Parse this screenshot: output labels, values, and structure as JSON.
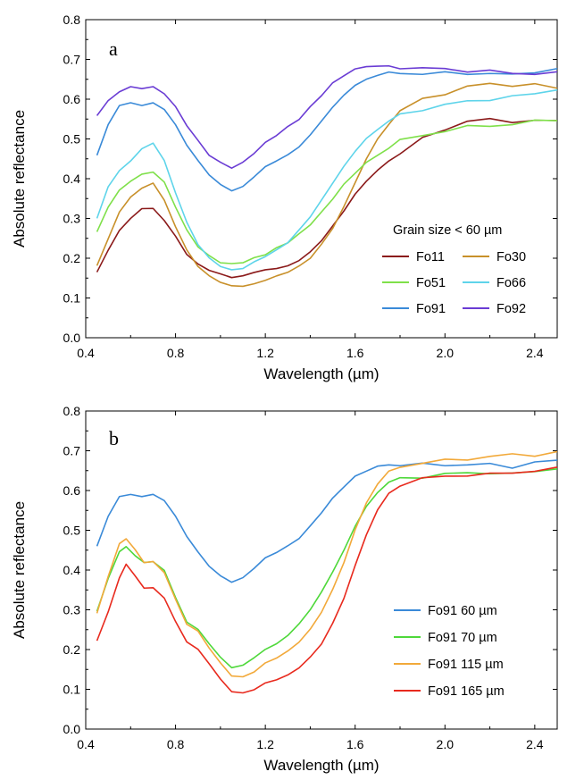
{
  "chart_data": [
    {
      "type": "line",
      "panel_label": "a",
      "xlabel": "Wavelength (µm)",
      "ylabel": "Absolute  reflectance",
      "xlim": [
        0.4,
        2.5
      ],
      "ylim": [
        0.0,
        0.8
      ],
      "x_ticks": [
        "0.4",
        "0.8",
        "1.2",
        "1.6",
        "2.0",
        "2.4"
      ],
      "y_ticks": [
        "0.0",
        "0.1",
        "0.2",
        "0.3",
        "0.4",
        "0.5",
        "0.6",
        "0.7",
        "0.8"
      ],
      "grid": false,
      "legend_title": "Grain size  < 60 µm",
      "legend_position": "center-right",
      "series": [
        {
          "name": "Fo11",
          "color": "#8B1A1A",
          "x": [
            0.45,
            0.5,
            0.55,
            0.6,
            0.65,
            0.7,
            0.75,
            0.8,
            0.85,
            0.9,
            0.95,
            1.0,
            1.05,
            1.1,
            1.15,
            1.2,
            1.25,
            1.3,
            1.35,
            1.4,
            1.45,
            1.5,
            1.55,
            1.6,
            1.65,
            1.7,
            1.75,
            1.8,
            1.9,
            2.0,
            2.1,
            2.2,
            2.3,
            2.4,
            2.5
          ],
          "y": [
            0.165,
            0.22,
            0.27,
            0.3,
            0.325,
            0.325,
            0.295,
            0.255,
            0.21,
            0.185,
            0.17,
            0.16,
            0.152,
            0.155,
            0.165,
            0.17,
            0.175,
            0.18,
            0.195,
            0.215,
            0.245,
            0.28,
            0.32,
            0.36,
            0.395,
            0.42,
            0.445,
            0.465,
            0.5,
            0.525,
            0.545,
            0.548,
            0.545,
            0.545,
            0.545
          ]
        },
        {
          "name": "Fo30",
          "color": "#C8902A",
          "x": [
            0.45,
            0.5,
            0.55,
            0.6,
            0.65,
            0.7,
            0.75,
            0.8,
            0.85,
            0.9,
            0.95,
            1.0,
            1.05,
            1.1,
            1.15,
            1.2,
            1.25,
            1.3,
            1.35,
            1.4,
            1.45,
            1.5,
            1.55,
            1.6,
            1.65,
            1.7,
            1.75,
            1.8,
            1.9,
            2.0,
            2.1,
            2.2,
            2.3,
            2.4,
            2.5
          ],
          "y": [
            0.18,
            0.25,
            0.315,
            0.355,
            0.375,
            0.39,
            0.345,
            0.28,
            0.22,
            0.18,
            0.155,
            0.14,
            0.13,
            0.13,
            0.135,
            0.145,
            0.155,
            0.165,
            0.18,
            0.2,
            0.235,
            0.275,
            0.33,
            0.39,
            0.45,
            0.5,
            0.54,
            0.57,
            0.6,
            0.615,
            0.63,
            0.64,
            0.635,
            0.635,
            0.63
          ]
        },
        {
          "name": "Fo51",
          "color": "#7FE04A",
          "x": [
            0.45,
            0.5,
            0.55,
            0.6,
            0.65,
            0.7,
            0.75,
            0.8,
            0.85,
            0.9,
            0.95,
            1.0,
            1.05,
            1.1,
            1.15,
            1.2,
            1.25,
            1.3,
            1.35,
            1.4,
            1.45,
            1.5,
            1.55,
            1.6,
            1.65,
            1.7,
            1.75,
            1.8,
            1.9,
            2.0,
            2.1,
            2.2,
            2.3,
            2.4,
            2.5
          ],
          "y": [
            0.265,
            0.33,
            0.37,
            0.395,
            0.41,
            0.418,
            0.39,
            0.33,
            0.27,
            0.23,
            0.205,
            0.19,
            0.185,
            0.19,
            0.2,
            0.21,
            0.225,
            0.24,
            0.26,
            0.285,
            0.315,
            0.35,
            0.385,
            0.415,
            0.44,
            0.46,
            0.48,
            0.495,
            0.51,
            0.52,
            0.53,
            0.535,
            0.535,
            0.545,
            0.55
          ]
        },
        {
          "name": "Fo66",
          "color": "#5ED4EA",
          "x": [
            0.45,
            0.5,
            0.55,
            0.6,
            0.65,
            0.7,
            0.75,
            0.8,
            0.85,
            0.9,
            0.95,
            1.0,
            1.05,
            1.1,
            1.15,
            1.2,
            1.25,
            1.3,
            1.35,
            1.4,
            1.45,
            1.5,
            1.55,
            1.6,
            1.65,
            1.7,
            1.75,
            1.8,
            1.9,
            2.0,
            2.1,
            2.2,
            2.3,
            2.4,
            2.5
          ],
          "y": [
            0.3,
            0.38,
            0.42,
            0.445,
            0.475,
            0.49,
            0.445,
            0.365,
            0.29,
            0.235,
            0.2,
            0.18,
            0.17,
            0.175,
            0.19,
            0.205,
            0.22,
            0.24,
            0.27,
            0.305,
            0.345,
            0.39,
            0.43,
            0.47,
            0.5,
            0.525,
            0.545,
            0.56,
            0.575,
            0.585,
            0.595,
            0.6,
            0.605,
            0.615,
            0.625
          ]
        },
        {
          "name": "Fo91",
          "color": "#3A8AD8",
          "x": [
            0.45,
            0.5,
            0.55,
            0.6,
            0.65,
            0.7,
            0.75,
            0.8,
            0.85,
            0.9,
            0.95,
            1.0,
            1.05,
            1.1,
            1.15,
            1.2,
            1.25,
            1.3,
            1.35,
            1.4,
            1.45,
            1.5,
            1.55,
            1.6,
            1.65,
            1.7,
            1.75,
            1.8,
            1.9,
            2.0,
            2.1,
            2.2,
            2.3,
            2.4,
            2.5
          ],
          "y": [
            0.46,
            0.535,
            0.585,
            0.59,
            0.585,
            0.59,
            0.575,
            0.535,
            0.485,
            0.445,
            0.41,
            0.385,
            0.37,
            0.38,
            0.405,
            0.43,
            0.445,
            0.46,
            0.48,
            0.51,
            0.545,
            0.58,
            0.61,
            0.635,
            0.65,
            0.66,
            0.665,
            0.665,
            0.665,
            0.665,
            0.665,
            0.665,
            0.66,
            0.67,
            0.675
          ]
        },
        {
          "name": "Fo92",
          "color": "#6A3CD4",
          "x": [
            0.45,
            0.5,
            0.55,
            0.6,
            0.65,
            0.7,
            0.75,
            0.8,
            0.85,
            0.9,
            0.95,
            1.0,
            1.05,
            1.1,
            1.15,
            1.2,
            1.25,
            1.3,
            1.35,
            1.4,
            1.45,
            1.5,
            1.55,
            1.6,
            1.65,
            1.7,
            1.75,
            1.8,
            1.9,
            2.0,
            2.1,
            2.2,
            2.3,
            2.4,
            2.5
          ],
          "y": [
            0.56,
            0.595,
            0.62,
            0.63,
            0.628,
            0.63,
            0.615,
            0.58,
            0.535,
            0.495,
            0.46,
            0.44,
            0.428,
            0.44,
            0.465,
            0.49,
            0.51,
            0.53,
            0.55,
            0.58,
            0.61,
            0.64,
            0.66,
            0.675,
            0.683,
            0.682,
            0.68,
            0.68,
            0.678,
            0.675,
            0.672,
            0.67,
            0.665,
            0.665,
            0.665
          ]
        }
      ]
    },
    {
      "type": "line",
      "panel_label": "b",
      "xlabel": "Wavelength (µm)",
      "ylabel": "Absolute  reflectance",
      "xlim": [
        0.4,
        2.5
      ],
      "ylim": [
        0.0,
        0.8
      ],
      "x_ticks": [
        "0.4",
        "0.8",
        "1.2",
        "1.6",
        "2.0",
        "2.4"
      ],
      "y_ticks": [
        "0.0",
        "0.1",
        "0.2",
        "0.3",
        "0.4",
        "0.5",
        "0.6",
        "0.7",
        "0.8"
      ],
      "grid": false,
      "legend_position": "bottom-right",
      "series": [
        {
          "name": "Fo91  60 µm",
          "color": "#3A8AD8",
          "x": [
            0.45,
            0.5,
            0.55,
            0.6,
            0.65,
            0.7,
            0.75,
            0.8,
            0.85,
            0.9,
            0.95,
            1.0,
            1.05,
            1.1,
            1.15,
            1.2,
            1.25,
            1.3,
            1.35,
            1.4,
            1.45,
            1.5,
            1.55,
            1.6,
            1.65,
            1.7,
            1.75,
            1.8,
            1.9,
            2.0,
            2.1,
            2.2,
            2.3,
            2.4,
            2.5
          ],
          "y": [
            0.46,
            0.535,
            0.585,
            0.59,
            0.585,
            0.59,
            0.575,
            0.535,
            0.485,
            0.445,
            0.41,
            0.385,
            0.37,
            0.38,
            0.405,
            0.43,
            0.445,
            0.46,
            0.48,
            0.51,
            0.545,
            0.58,
            0.61,
            0.635,
            0.65,
            0.66,
            0.665,
            0.665,
            0.665,
            0.665,
            0.665,
            0.665,
            0.66,
            0.67,
            0.675
          ]
        },
        {
          "name": "Fo91  70 µm",
          "color": "#4ED83A",
          "x": [
            0.45,
            0.5,
            0.55,
            0.58,
            0.62,
            0.66,
            0.7,
            0.75,
            0.8,
            0.85,
            0.9,
            0.95,
            1.0,
            1.05,
            1.1,
            1.15,
            1.2,
            1.25,
            1.3,
            1.35,
            1.4,
            1.45,
            1.5,
            1.55,
            1.6,
            1.65,
            1.7,
            1.75,
            1.8,
            1.9,
            2.0,
            2.1,
            2.2,
            2.3,
            2.4,
            2.5
          ],
          "y": [
            0.295,
            0.38,
            0.445,
            0.46,
            0.435,
            0.42,
            0.42,
            0.4,
            0.33,
            0.27,
            0.25,
            0.215,
            0.18,
            0.155,
            0.16,
            0.18,
            0.2,
            0.215,
            0.235,
            0.265,
            0.3,
            0.345,
            0.395,
            0.45,
            0.51,
            0.56,
            0.595,
            0.62,
            0.63,
            0.635,
            0.64,
            0.645,
            0.645,
            0.64,
            0.65,
            0.655
          ]
        },
        {
          "name": "Fo91  115 µm",
          "color": "#F2A93A",
          "x": [
            0.45,
            0.5,
            0.55,
            0.58,
            0.62,
            0.66,
            0.7,
            0.75,
            0.8,
            0.85,
            0.9,
            0.95,
            1.0,
            1.05,
            1.1,
            1.15,
            1.2,
            1.25,
            1.3,
            1.35,
            1.4,
            1.45,
            1.5,
            1.55,
            1.6,
            1.65,
            1.7,
            1.75,
            1.8,
            1.9,
            2.0,
            2.1,
            2.2,
            2.3,
            2.4,
            2.5
          ],
          "y": [
            0.29,
            0.385,
            0.465,
            0.48,
            0.45,
            0.42,
            0.42,
            0.395,
            0.325,
            0.265,
            0.245,
            0.205,
            0.165,
            0.135,
            0.13,
            0.145,
            0.165,
            0.18,
            0.195,
            0.22,
            0.25,
            0.295,
            0.35,
            0.42,
            0.5,
            0.57,
            0.615,
            0.645,
            0.66,
            0.67,
            0.675,
            0.68,
            0.685,
            0.69,
            0.69,
            0.695
          ]
        },
        {
          "name": "Fo91  165 µm",
          "color": "#E82A1E",
          "x": [
            0.45,
            0.5,
            0.55,
            0.58,
            0.62,
            0.66,
            0.7,
            0.75,
            0.8,
            0.85,
            0.9,
            0.95,
            1.0,
            1.05,
            1.1,
            1.15,
            1.2,
            1.25,
            1.3,
            1.35,
            1.4,
            1.45,
            1.5,
            1.55,
            1.6,
            1.65,
            1.7,
            1.75,
            1.8,
            1.9,
            2.0,
            2.1,
            2.2,
            2.3,
            2.4,
            2.5
          ],
          "y": [
            0.222,
            0.295,
            0.38,
            0.415,
            0.385,
            0.355,
            0.355,
            0.33,
            0.27,
            0.22,
            0.2,
            0.165,
            0.125,
            0.095,
            0.09,
            0.1,
            0.115,
            0.125,
            0.135,
            0.155,
            0.18,
            0.215,
            0.265,
            0.33,
            0.41,
            0.49,
            0.55,
            0.59,
            0.615,
            0.63,
            0.635,
            0.64,
            0.64,
            0.645,
            0.65,
            0.655
          ]
        }
      ]
    }
  ]
}
